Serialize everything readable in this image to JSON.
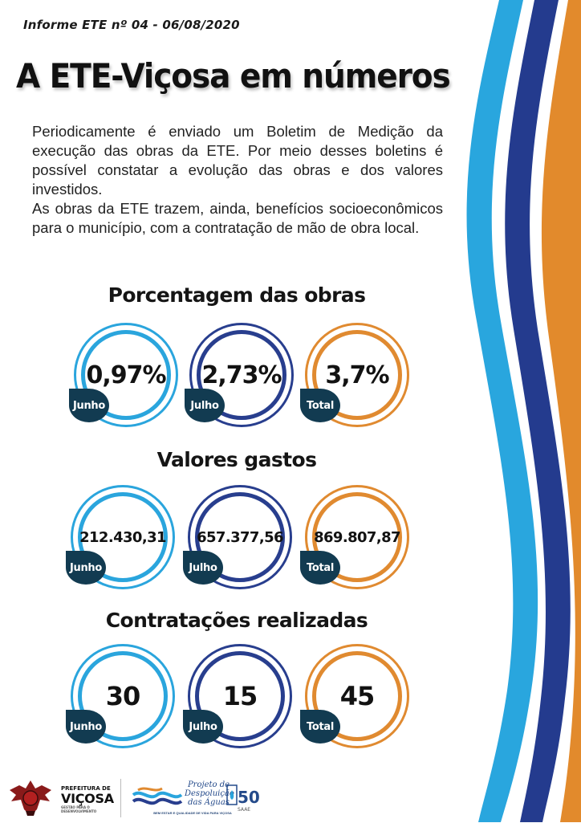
{
  "header": {
    "kicker": "Informe ETE nº 04 - 06/08/2020",
    "title": "A ETE-Viçosa em números"
  },
  "intro": {
    "paragraph1": "Periodicamente é enviado um Boletim de Medição da execução das obras da ETE. Por meio desses boletins é possível constatar a evolução das obras e dos valores investidos.",
    "paragraph2": "As obras da ETE trazem, ainda, benefícios socioeconômicos para o município, com a contratação de mão de obra local."
  },
  "sections": {
    "percentage": {
      "title": "Porcentagem das obras",
      "items": [
        {
          "value": "0,97%",
          "tag": "Junho"
        },
        {
          "value": "2,73%",
          "tag": "Julho"
        },
        {
          "value": "3,7%",
          "tag": "Total"
        }
      ]
    },
    "spending": {
      "title": "Valores gastos",
      "items": [
        {
          "value": "212.430,31",
          "tag": "Junho"
        },
        {
          "value": "657.377,56",
          "tag": "Julho"
        },
        {
          "value": "869.807,87",
          "tag": "Total"
        }
      ]
    },
    "hiring": {
      "title": "Contratações realizadas",
      "items": [
        {
          "value": "30",
          "tag": "Junho"
        },
        {
          "value": "15",
          "tag": "Julho"
        },
        {
          "value": "45",
          "tag": "Total"
        }
      ]
    }
  },
  "colors": {
    "june": "#2aa5dd",
    "july": "#283e8e",
    "total": "#e08a30",
    "tag_bg": "#123b51"
  },
  "footer": {
    "prefeitura_line1": "PREFEITURA DE",
    "prefeitura_line2": "VIÇOSA",
    "prefeitura_line3": "GESTÃO PARA O DESENVOLVIMENTO",
    "project_name": "Projeto de Despoluição das Águas",
    "project_tagline": "BEM ESTAR E QUALIDADE DE VIDA PARA VIÇOSA",
    "saae_mark": "50",
    "saae_year": "SAAE"
  }
}
